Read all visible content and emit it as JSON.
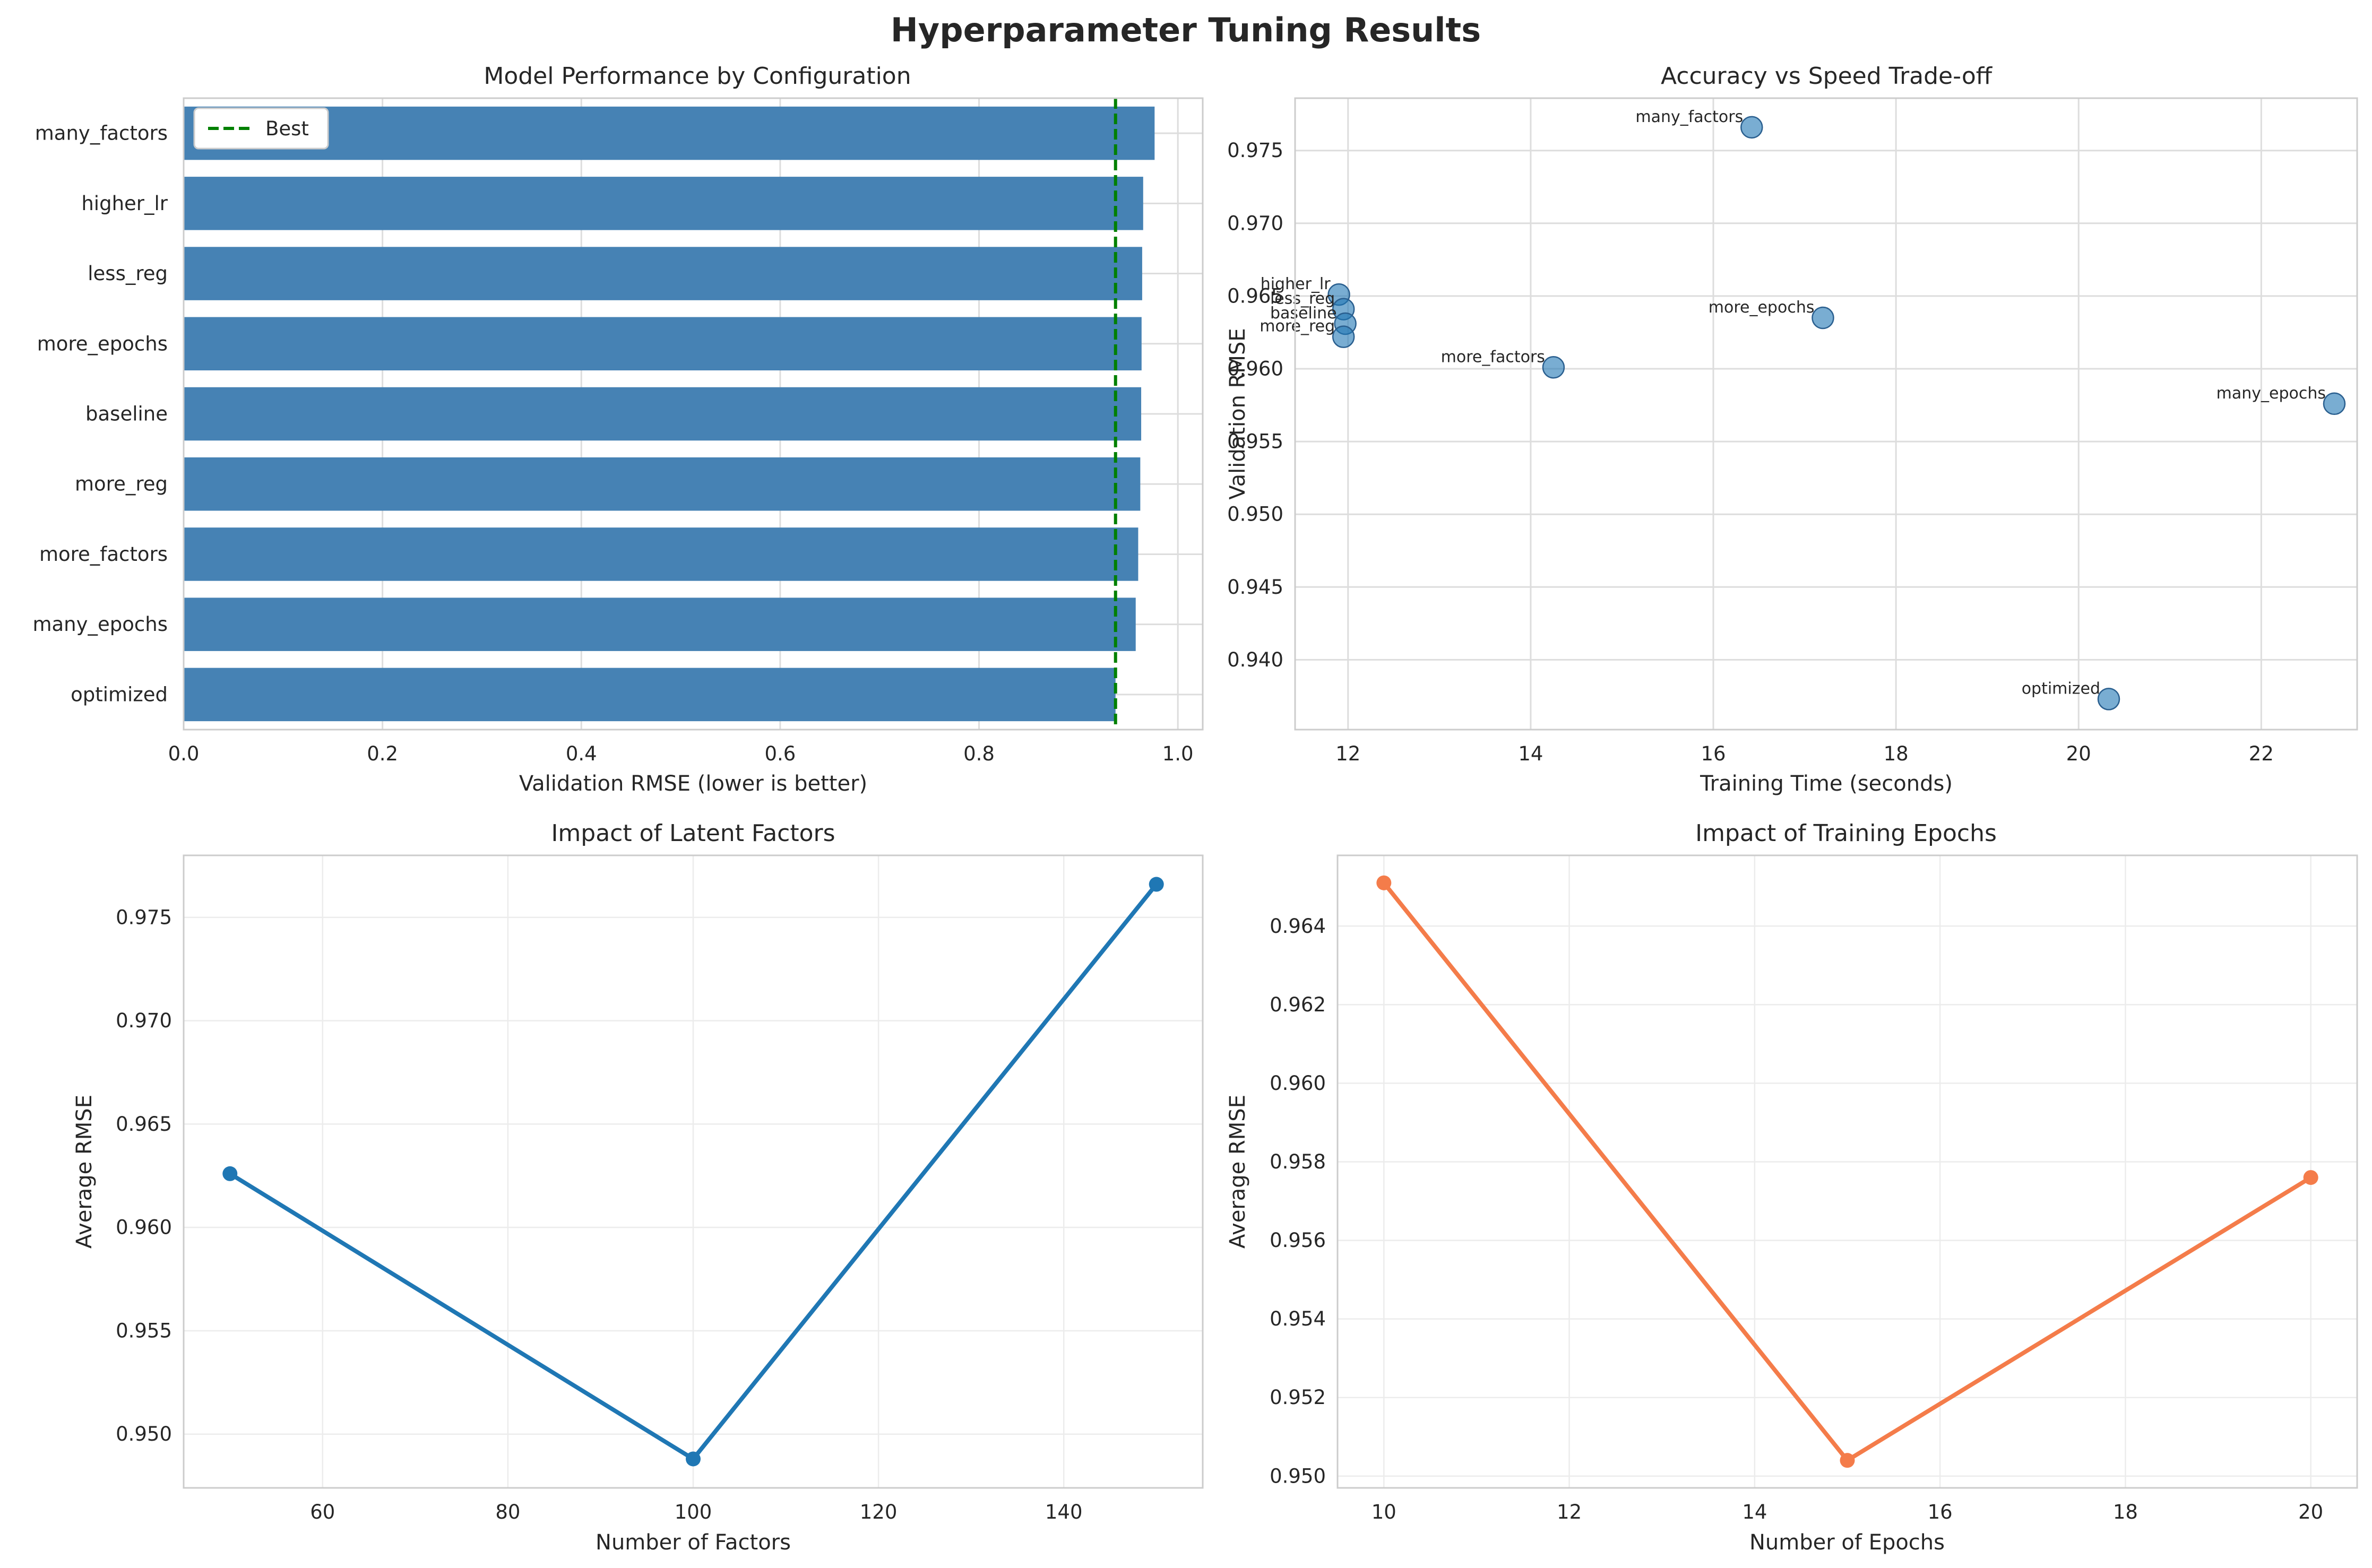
{
  "figure": {
    "title": "Hyperparameter Tuning Results"
  },
  "chart_data": [
    {
      "type": "bar",
      "orientation": "horizontal",
      "title": "Model Performance by Configuration",
      "xlabel": "Validation RMSE (lower is better)",
      "ylabel": "",
      "categories": [
        "many_factors",
        "higher_lr",
        "less_reg",
        "more_epochs",
        "baseline",
        "more_reg",
        "more_factors",
        "many_epochs",
        "optimized"
      ],
      "values": [
        0.9766,
        0.9651,
        0.9641,
        0.9635,
        0.9631,
        0.9622,
        0.9601,
        0.9576,
        0.9373
      ],
      "xlim": [
        0,
        1.025
      ],
      "xticks": [
        "0.0",
        "0.2",
        "0.4",
        "0.6",
        "0.8",
        "1.0"
      ],
      "bar_color": "#4682b4",
      "reference_line": {
        "label": "Best",
        "value": 0.9373,
        "color": "#008000",
        "style": "dashed"
      },
      "legend": {
        "position": "upper-left",
        "entries": [
          "Best"
        ]
      },
      "grid": true
    },
    {
      "type": "scatter",
      "title": "Accuracy vs Speed Trade-off",
      "xlabel": "Training Time (seconds)",
      "ylabel": "Validation RMSE",
      "points": [
        {
          "label": "many_factors",
          "x": 16.42,
          "y": 0.9766
        },
        {
          "label": "higher_lr",
          "x": 11.9,
          "y": 0.9651
        },
        {
          "label": "less_reg",
          "x": 11.95,
          "y": 0.9641
        },
        {
          "label": "baseline",
          "x": 11.97,
          "y": 0.9631
        },
        {
          "label": "more_reg",
          "x": 11.95,
          "y": 0.9622
        },
        {
          "label": "more_epochs",
          "x": 17.2,
          "y": 0.9635
        },
        {
          "label": "more_factors",
          "x": 14.25,
          "y": 0.9601
        },
        {
          "label": "many_epochs",
          "x": 22.8,
          "y": 0.9576
        },
        {
          "label": "optimized",
          "x": 20.33,
          "y": 0.9373
        }
      ],
      "xlim": [
        11.42,
        23.05
      ],
      "ylim": [
        0.9352,
        0.9786
      ],
      "xticks": [
        12,
        14,
        16,
        18,
        20,
        22
      ],
      "yticks": [
        "0.940",
        "0.945",
        "0.950",
        "0.955",
        "0.960",
        "0.965",
        "0.970",
        "0.975"
      ],
      "marker_color": "#1f77b4",
      "grid": true
    },
    {
      "type": "line",
      "title": "Impact of Latent Factors",
      "xlabel": "Number of Factors",
      "ylabel": "Average RMSE",
      "x": [
        50,
        100,
        150
      ],
      "y": [
        0.9626,
        0.9488,
        0.9766
      ],
      "xlim": [
        45,
        155
      ],
      "ylim": [
        0.9474,
        0.978
      ],
      "xticks": [
        60,
        80,
        100,
        120,
        140
      ],
      "yticks": [
        "0.950",
        "0.955",
        "0.960",
        "0.965",
        "0.970",
        "0.975"
      ],
      "color": "#1f77b4",
      "grid": true
    },
    {
      "type": "line",
      "title": "Impact of Training Epochs",
      "xlabel": "Number of Epochs",
      "ylabel": "Average RMSE",
      "x": [
        10,
        15,
        20
      ],
      "y": [
        0.9651,
        0.9504,
        0.9576
      ],
      "xlim": [
        9.5,
        20.5
      ],
      "ylim": [
        0.9497,
        0.9658
      ],
      "xticks": [
        10,
        12,
        14,
        16,
        18,
        20
      ],
      "yticks": [
        "0.950",
        "0.952",
        "0.954",
        "0.956",
        "0.958",
        "0.960",
        "0.962",
        "0.964"
      ],
      "color": "#f47c4a",
      "grid": true
    }
  ]
}
